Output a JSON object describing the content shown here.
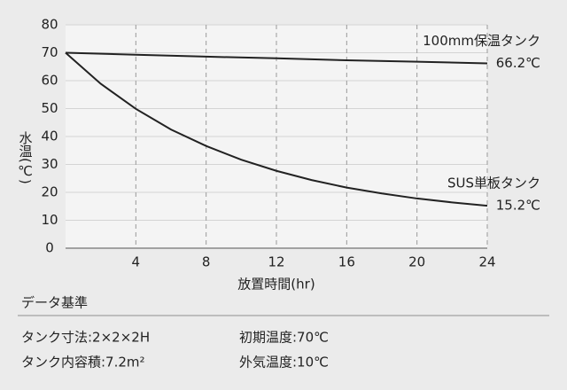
{
  "chart_data": {
    "type": "line",
    "ylabel": "水温(℃)",
    "xlabel": "放置時間(hr)",
    "xlim": [
      0,
      24
    ],
    "xticks": [
      4,
      8,
      12,
      16,
      20,
      24
    ],
    "ylim": [
      0,
      80
    ],
    "yticks": [
      0,
      10,
      20,
      30,
      40,
      50,
      60,
      70,
      80
    ],
    "grid": true,
    "series": [
      {
        "name": "100mm保温タンク",
        "color": "#222222",
        "x": [
          0,
          4,
          8,
          12,
          16,
          20,
          24
        ],
        "values": [
          70,
          69.3,
          68.6,
          68.0,
          67.3,
          66.8,
          66.2
        ],
        "value_labels": [
          null,
          null,
          null,
          null,
          null,
          null,
          "66.2℃"
        ]
      },
      {
        "name": "SUS単板タンク",
        "color": "#222222",
        "x": [
          0,
          2,
          4,
          6,
          8,
          10,
          12,
          14,
          16,
          18,
          20,
          22,
          24
        ],
        "values": [
          70,
          58.9,
          49.9,
          42.5,
          36.6,
          31.7,
          27.7,
          24.4,
          21.7,
          19.6,
          17.8,
          16.4,
          15.2
        ],
        "value_labels": [
          null,
          null,
          null,
          null,
          null,
          null,
          null,
          null,
          null,
          null,
          null,
          null,
          "15.2℃"
        ]
      }
    ]
  },
  "data_basis": {
    "title": "データ基準",
    "items": [
      "タンク寸法:2×2×2H",
      "初期温度:70℃",
      "タンク内容積:7.2m²",
      "外気温度:10℃"
    ]
  }
}
